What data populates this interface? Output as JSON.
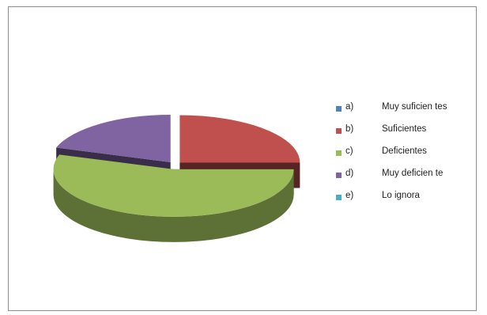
{
  "chart_data": {
    "type": "pie",
    "style": "3d-exploded",
    "legend_position": "right",
    "slices": [
      {
        "letter": "a)",
        "label": "Muy suficien tes",
        "value": 0,
        "color": "#4f81bd"
      },
      {
        "letter": "b)",
        "label": "Suficientes",
        "value": 25,
        "color": "#c0504d"
      },
      {
        "letter": "c)",
        "label": "Deficientes",
        "value": 55,
        "color": "#9bbb59"
      },
      {
        "letter": "d)",
        "label": "Muy deficien te",
        "value": 20,
        "color": "#8064a2"
      },
      {
        "letter": "e)",
        "label": "Lo ignora",
        "value": 0,
        "color": "#4bacc6"
      }
    ]
  }
}
